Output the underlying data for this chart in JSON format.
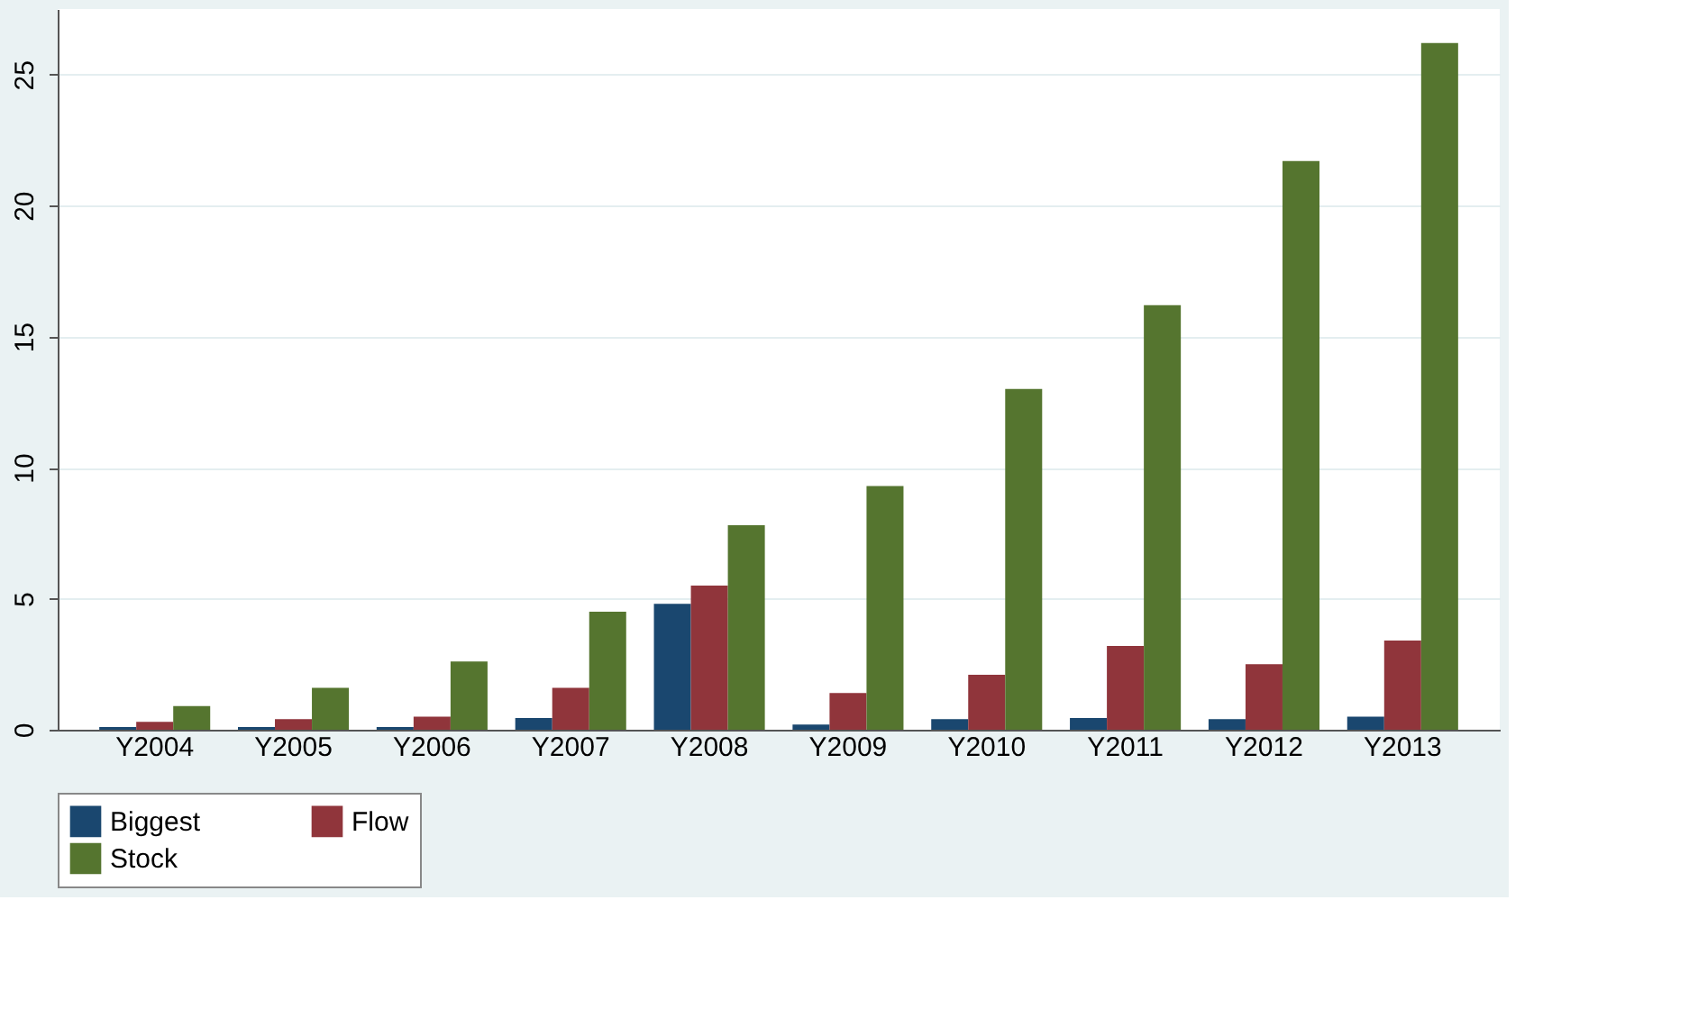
{
  "chart_data": {
    "type": "bar",
    "categories": [
      "Y2004",
      "Y2005",
      "Y2006",
      "Y2007",
      "Y2008",
      "Y2009",
      "Y2010",
      "Y2011",
      "Y2012",
      "Y2013"
    ],
    "series": [
      {
        "name": "Biggest",
        "color": "#1a476f",
        "values": [
          0.1,
          0.1,
          0.1,
          0.45,
          4.8,
          0.2,
          0.4,
          0.45,
          0.4,
          0.5
        ]
      },
      {
        "name": "Flow",
        "color": "#90353b",
        "values": [
          0.3,
          0.4,
          0.5,
          1.6,
          5.5,
          1.4,
          2.1,
          3.2,
          2.5,
          3.4
        ]
      },
      {
        "name": "Stock",
        "color": "#55752f",
        "values": [
          0.9,
          1.6,
          2.6,
          4.5,
          7.8,
          9.3,
          13.0,
          16.2,
          21.7,
          26.2
        ]
      }
    ],
    "ylim": [
      0,
      27.5
    ],
    "yticks": [
      0,
      5,
      10,
      15,
      20,
      25
    ],
    "grid": "y",
    "legend": "bottom"
  }
}
